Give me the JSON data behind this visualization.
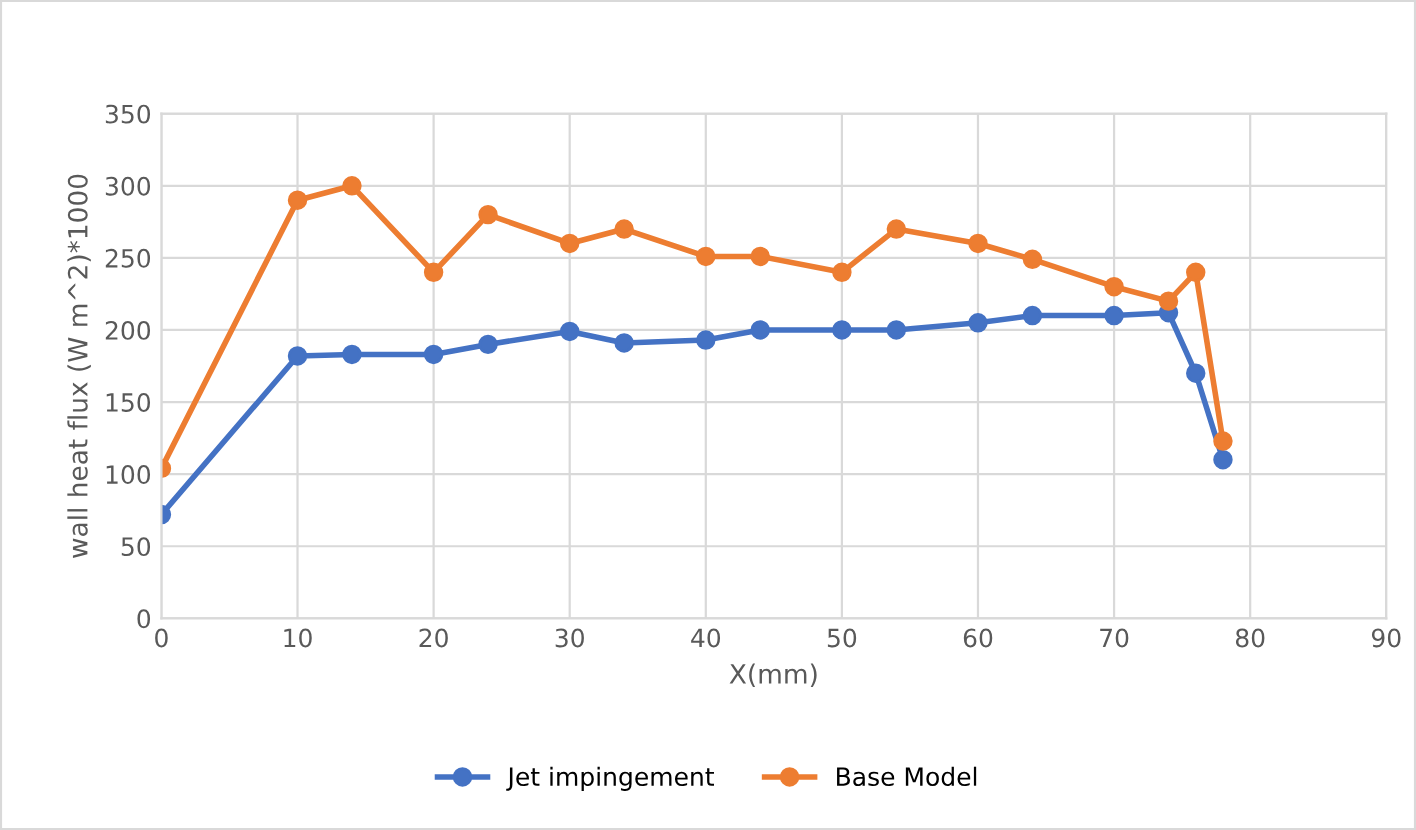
{
  "chart_data": {
    "type": "line",
    "xlabel": "X(mm)",
    "ylabel": "wall heat flux (W m^2)*1000",
    "x": [
      0,
      10,
      14,
      20,
      24,
      30,
      34,
      40,
      44,
      50,
      54,
      60,
      64,
      70,
      74,
      76,
      78
    ],
    "series": [
      {
        "name": "Jet impingement",
        "color": "#4472c4",
        "values": [
          72,
          182,
          183,
          183,
          190,
          199,
          191,
          193,
          200,
          200,
          200,
          205,
          210,
          210,
          212,
          170,
          110
        ]
      },
      {
        "name": "Base Model",
        "color": "#ed7d31",
        "values": [
          104,
          290,
          300,
          240,
          280,
          260,
          270,
          251,
          251,
          240,
          270,
          260,
          249,
          230,
          220,
          240,
          123
        ]
      }
    ],
    "xlim": [
      0,
      90
    ],
    "xticks": [
      0,
      10,
      20,
      30,
      40,
      50,
      60,
      70,
      80,
      90
    ],
    "ylim": [
      0,
      350
    ],
    "yticks": [
      0,
      50,
      100,
      150,
      200,
      250,
      300,
      350
    ],
    "grid": true,
    "legend": "bottom",
    "marker": "circle",
    "line_style": "solid"
  }
}
